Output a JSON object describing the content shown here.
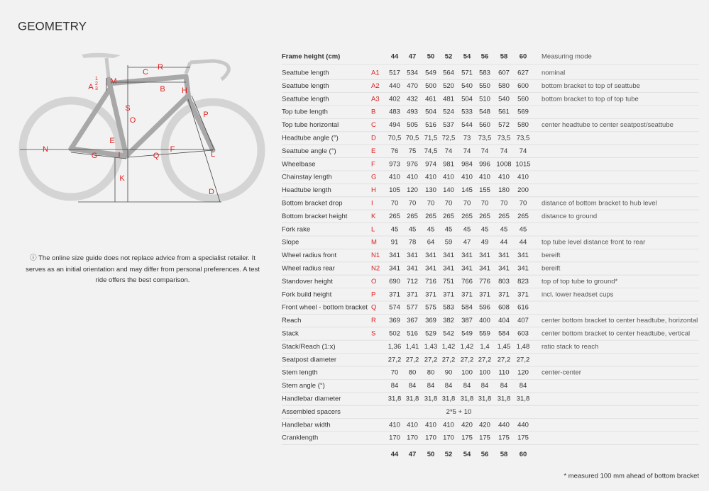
{
  "header": {
    "title": "GEOMETRY"
  },
  "diagram": {
    "labels": [
      "R",
      "C",
      "M",
      "A",
      "1",
      "2",
      "3",
      "B",
      "H",
      "S",
      "O",
      "P",
      "E",
      "N",
      "G",
      "I",
      "F",
      "Q",
      "L",
      "K",
      "D"
    ]
  },
  "note": "ⓘ The online size guide does not replace advice from a specialist retailer. It serves as an initial orientation and may differ from personal preferences. A test ride offers the best comparison.",
  "table": {
    "header": {
      "label": "Frame height (cm)",
      "sizes": [
        "44",
        "47",
        "50",
        "52",
        "54",
        "56",
        "58",
        "60"
      ],
      "mode": "Measuring mode"
    },
    "rows": [
      {
        "name": "Seattube length",
        "code": "A1",
        "values": [
          "517",
          "534",
          "549",
          "564",
          "571",
          "583",
          "607",
          "627"
        ],
        "mode": "nominal"
      },
      {
        "name": "Seattube length",
        "code": "A2",
        "values": [
          "440",
          "470",
          "500",
          "520",
          "540",
          "550",
          "580",
          "600"
        ],
        "mode": "bottom bracket to top of seattube"
      },
      {
        "name": "Seattube length",
        "code": "A3",
        "values": [
          "402",
          "432",
          "461",
          "481",
          "504",
          "510",
          "540",
          "560"
        ],
        "mode": "bottom bracket to top of top tube"
      },
      {
        "name": "Top tube length",
        "code": "B",
        "values": [
          "483",
          "493",
          "504",
          "524",
          "533",
          "548",
          "561",
          "569"
        ]
      },
      {
        "name": "Top tube horizontal",
        "code": "C",
        "values": [
          "494",
          "505",
          "516",
          "537",
          "544",
          "560",
          "572",
          "580"
        ],
        "mode": "center headtube to center seatpost/seattube"
      },
      {
        "name": "Headtube angle (°)",
        "code": "D",
        "values": [
          "70,5",
          "70,5",
          "71,5",
          "72,5",
          "73",
          "73,5",
          "73,5",
          "73,5"
        ]
      },
      {
        "name": "Seattube angle (°)",
        "code": "E",
        "values": [
          "76",
          "75",
          "74,5",
          "74",
          "74",
          "74",
          "74",
          "74"
        ]
      },
      {
        "name": "Wheelbase",
        "code": "F",
        "values": [
          "973",
          "976",
          "974",
          "981",
          "984",
          "996",
          "1008",
          "1015"
        ]
      },
      {
        "name": "Chainstay length",
        "code": "G",
        "values": [
          "410",
          "410",
          "410",
          "410",
          "410",
          "410",
          "410",
          "410"
        ]
      },
      {
        "name": "Headtube length",
        "code": "H",
        "values": [
          "105",
          "120",
          "130",
          "140",
          "145",
          "155",
          "180",
          "200"
        ]
      },
      {
        "name": "Bottom bracket drop",
        "code": "I",
        "values": [
          "70",
          "70",
          "70",
          "70",
          "70",
          "70",
          "70",
          "70"
        ],
        "mode": "distance of bottom bracket to hub level"
      },
      {
        "name": "Bottom bracket height",
        "code": "K",
        "values": [
          "265",
          "265",
          "265",
          "265",
          "265",
          "265",
          "265",
          "265"
        ],
        "mode": "distance to ground"
      },
      {
        "name": "Fork rake",
        "code": "L",
        "values": [
          "45",
          "45",
          "45",
          "45",
          "45",
          "45",
          "45",
          "45"
        ]
      },
      {
        "name": "Slope",
        "code": "M",
        "values": [
          "91",
          "78",
          "64",
          "59",
          "47",
          "49",
          "44",
          "44"
        ],
        "mode": "top tube level distance front to rear"
      },
      {
        "name": "Wheel radius front",
        "code": "N1",
        "values": [
          "341",
          "341",
          "341",
          "341",
          "341",
          "341",
          "341",
          "341"
        ],
        "mode": "bereift"
      },
      {
        "name": "Wheel radius rear",
        "code": "N2",
        "values": [
          "341",
          "341",
          "341",
          "341",
          "341",
          "341",
          "341",
          "341"
        ],
        "mode": "bereift"
      },
      {
        "name": "Standover height",
        "code": "O",
        "values": [
          "690",
          "712",
          "716",
          "751",
          "766",
          "776",
          "803",
          "823"
        ],
        "mode": "top of top tube to ground*"
      },
      {
        "name": "Fork build height",
        "code": "P",
        "values": [
          "371",
          "371",
          "371",
          "371",
          "371",
          "371",
          "371",
          "371"
        ],
        "mode": "incl. lower headset cups"
      },
      {
        "name": "Front wheel - bottom bracket",
        "code": "Q",
        "values": [
          "574",
          "577",
          "575",
          "583",
          "584",
          "596",
          "608",
          "616"
        ]
      },
      {
        "name": "Reach",
        "code": "R",
        "values": [
          "369",
          "367",
          "369",
          "382",
          "387",
          "400",
          "404",
          "407"
        ],
        "mode": "center bottom bracket to center headtube, horizontal"
      },
      {
        "name": "Stack",
        "code": "S",
        "values": [
          "502",
          "516",
          "529",
          "542",
          "549",
          "559",
          "584",
          "603"
        ],
        "mode": "center bottom bracket to center headtube, vertical"
      },
      {
        "name": "Stack/Reach (1:x)",
        "values": [
          "1,36",
          "1,41",
          "1,43",
          "1,42",
          "1,42",
          "1,4",
          "1,45",
          "1,48"
        ],
        "mode": "ratio stack to reach"
      },
      {
        "name": "Seatpost diameter",
        "values": [
          "27,2",
          "27,2",
          "27,2",
          "27,2",
          "27,2",
          "27,2",
          "27,2",
          "27,2"
        ]
      },
      {
        "name": "Stem length",
        "values": [
          "70",
          "80",
          "80",
          "90",
          "100",
          "100",
          "110",
          "120"
        ],
        "mode": "center-center"
      },
      {
        "name": "Stem angle (°)",
        "values": [
          "84",
          "84",
          "84",
          "84",
          "84",
          "84",
          "84",
          "84"
        ]
      },
      {
        "name": "Handlebar diameter",
        "values": [
          "31,8",
          "31,8",
          "31,8",
          "31,8",
          "31,8",
          "31,8",
          "31,8",
          "31,8"
        ]
      },
      {
        "name": "Assembled spacers",
        "span_value": "2*5 + 10"
      },
      {
        "name": "Handlebar width",
        "values": [
          "410",
          "410",
          "410",
          "410",
          "420",
          "420",
          "440",
          "440"
        ]
      },
      {
        "name": "Cranklength",
        "values": [
          "170",
          "170",
          "170",
          "170",
          "175",
          "175",
          "175",
          "175"
        ]
      }
    ],
    "footer_sizes": [
      "44",
      "47",
      "50",
      "52",
      "54",
      "56",
      "58",
      "60"
    ]
  },
  "footnote": "* measured 100 mm ahead of bottom bracket"
}
